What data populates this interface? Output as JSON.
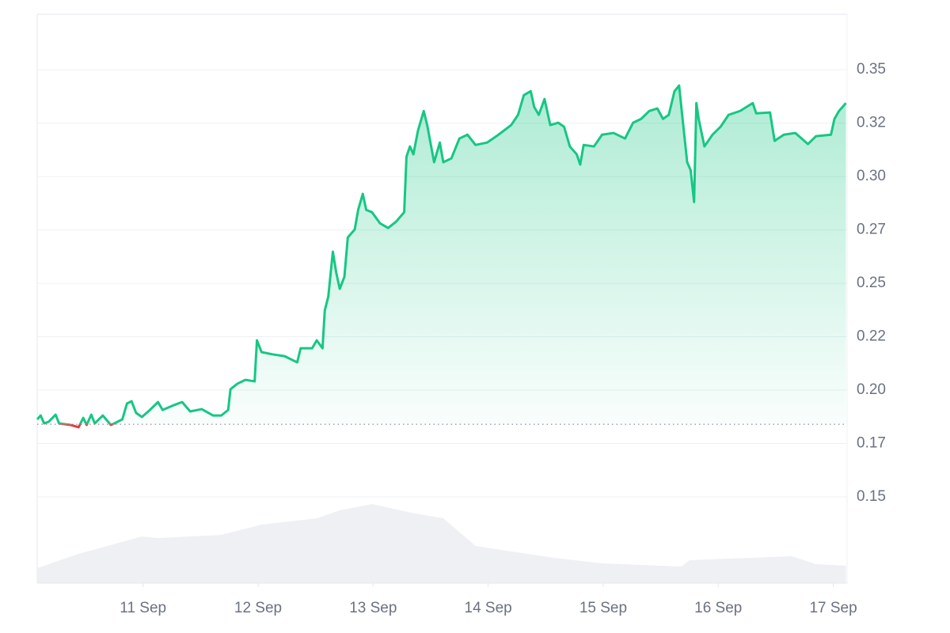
{
  "chart_data": {
    "type": "line",
    "x": [
      10.08,
      10.11,
      10.14,
      10.18,
      10.24,
      10.27,
      10.37,
      10.44,
      10.48,
      10.51,
      10.55,
      10.58,
      10.65,
      10.72,
      10.75,
      10.82,
      10.86,
      10.9,
      10.94,
      10.99,
      11.06,
      11.13,
      11.17,
      11.27,
      11.34,
      11.41,
      11.51,
      11.61,
      11.68,
      11.74,
      11.76,
      11.82,
      11.89,
      11.97,
      11.99,
      12.03,
      12.13,
      12.23,
      12.34,
      12.37,
      12.47,
      12.51,
      12.56,
      12.58,
      12.61,
      12.65,
      12.68,
      12.71,
      12.75,
      12.78,
      12.84,
      12.87,
      12.91,
      12.94,
      12.99,
      13.06,
      13.13,
      13.2,
      13.27,
      13.29,
      13.32,
      13.35,
      13.39,
      13.44,
      13.47,
      13.53,
      13.58,
      13.61,
      13.68,
      13.75,
      13.82,
      13.89,
      13.99,
      14.09,
      14.2,
      14.26,
      14.31,
      14.37,
      14.4,
      14.44,
      14.49,
      14.54,
      14.61,
      14.66,
      14.71,
      14.77,
      14.8,
      14.83,
      14.92,
      14.99,
      15.09,
      15.19,
      15.26,
      15.33,
      15.4,
      15.47,
      15.52,
      15.57,
      15.62,
      15.66,
      15.69,
      15.73,
      15.76,
      15.79,
      15.81,
      15.83,
      15.88,
      15.95,
      16.02,
      16.09,
      16.19,
      16.3,
      16.33,
      16.45,
      16.49,
      16.57,
      16.67,
      16.78,
      16.85,
      16.98,
      17.01,
      17.05,
      17.11
    ],
    "values": [
      0.1863,
      0.1881,
      0.1844,
      0.1852,
      0.1885,
      0.1844,
      0.1837,
      0.1826,
      0.187,
      0.1837,
      0.1885,
      0.1844,
      0.1881,
      0.1837,
      0.1844,
      0.1863,
      0.1937,
      0.1948,
      0.1893,
      0.1874,
      0.1907,
      0.1944,
      0.1907,
      0.193,
      0.1944,
      0.19,
      0.1911,
      0.1881,
      0.1881,
      0.1907,
      0.2004,
      0.203,
      0.2048,
      0.2041,
      0.2233,
      0.2178,
      0.2167,
      0.2159,
      0.213,
      0.2196,
      0.2196,
      0.2233,
      0.2196,
      0.2374,
      0.2437,
      0.2648,
      0.2548,
      0.2474,
      0.253,
      0.2715,
      0.2752,
      0.2844,
      0.2919,
      0.2844,
      0.2833,
      0.2781,
      0.2759,
      0.2789,
      0.2833,
      0.3093,
      0.3141,
      0.3104,
      0.3215,
      0.3307,
      0.3241,
      0.3067,
      0.3159,
      0.3067,
      0.3085,
      0.3178,
      0.3196,
      0.3148,
      0.3159,
      0.3196,
      0.3241,
      0.3289,
      0.3381,
      0.34,
      0.3326,
      0.3289,
      0.3363,
      0.3241,
      0.3252,
      0.3233,
      0.3141,
      0.3104,
      0.3056,
      0.3148,
      0.3141,
      0.3196,
      0.3204,
      0.3178,
      0.3252,
      0.327,
      0.3307,
      0.3319,
      0.327,
      0.3289,
      0.34,
      0.3426,
      0.327,
      0.3067,
      0.303,
      0.2881,
      0.3344,
      0.327,
      0.3141,
      0.3196,
      0.3233,
      0.3289,
      0.3307,
      0.3344,
      0.3296,
      0.33,
      0.3167,
      0.3196,
      0.3204,
      0.3152,
      0.3189,
      0.3196,
      0.327,
      0.3307,
      0.3344
    ],
    "color": "#16c784",
    "down_color": "#ea3943",
    "baseline": 0.184,
    "xlim": [
      10.08,
      17.12
    ],
    "xticks": [
      {
        "value": 11,
        "label": "11 Sep"
      },
      {
        "value": 12,
        "label": "12 Sep"
      },
      {
        "value": 13,
        "label": "13 Sep"
      },
      {
        "value": 14,
        "label": "14 Sep"
      },
      {
        "value": 15,
        "label": "15 Sep"
      },
      {
        "value": 16,
        "label": "16 Sep"
      },
      {
        "value": 17,
        "label": "17 Sep"
      }
    ],
    "ylim": [
      0.1096,
      0.376
    ],
    "yticks": [
      {
        "value": 0.15,
        "label": "0.15"
      },
      {
        "value": 0.175,
        "label": "0.17"
      },
      {
        "value": 0.2,
        "label": "0.20"
      },
      {
        "value": 0.225,
        "label": "0.22"
      },
      {
        "value": 0.25,
        "label": "0.25"
      },
      {
        "value": 0.275,
        "label": "0.27"
      },
      {
        "value": 0.3,
        "label": "0.30"
      },
      {
        "value": 0.325,
        "label": "0.32"
      },
      {
        "value": 0.35,
        "label": "0.35"
      }
    ],
    "grid": true,
    "volume": {
      "x": [
        10.08,
        10.44,
        10.99,
        11.13,
        11.68,
        12.03,
        12.51,
        12.71,
        12.99,
        13.33,
        13.61,
        13.89,
        14.57,
        14.99,
        15.68,
        15.75,
        16.64,
        16.85,
        17.11
      ],
      "values": [
        19,
        37,
        59,
        57,
        61,
        74,
        82,
        92,
        100,
        89,
        82,
        47,
        32,
        25,
        21,
        29,
        34,
        24,
        22
      ],
      "ylim": [
        0,
        120
      ],
      "color": "#eef0f4"
    }
  }
}
